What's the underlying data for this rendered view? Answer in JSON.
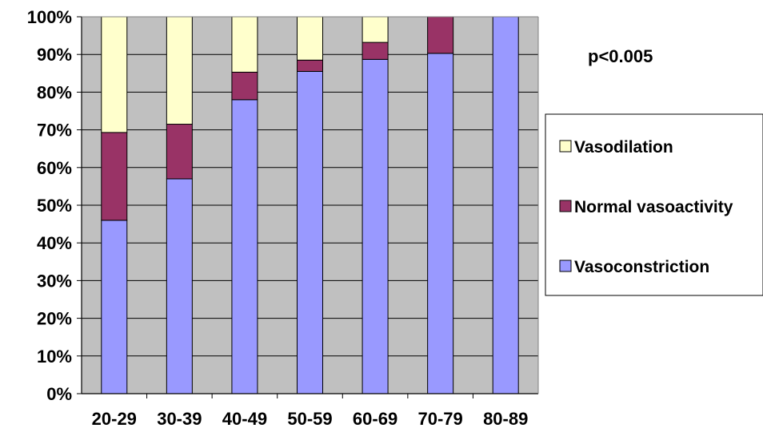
{
  "chart_data": {
    "type": "bar",
    "stacked": true,
    "normalized_percent": true,
    "categories": [
      "20-29",
      "30-39",
      "40-49",
      "50-59",
      "60-69",
      "70-79",
      "80-89"
    ],
    "series": [
      {
        "name": "Vasoconstriction",
        "values": [
          46,
          57,
          78,
          85.5,
          88.7,
          90.3,
          100
        ],
        "color": "#9999ff"
      },
      {
        "name": "Normal vasoactivity",
        "values": [
          23.3,
          14.5,
          7.3,
          3,
          4.5,
          9.7,
          0
        ],
        "color": "#993366"
      },
      {
        "name": "Vasodilation",
        "values": [
          30.7,
          28.5,
          14.7,
          11.5,
          6.8,
          0,
          0
        ],
        "color": "#ffffcc"
      }
    ],
    "ylim": [
      0,
      100
    ],
    "yticks": [
      "0%",
      "10%",
      "20%",
      "30%",
      "40%",
      "50%",
      "60%",
      "70%",
      "80%",
      "90%",
      "100%"
    ],
    "annotation": "p<0.005",
    "legend_placement": "right",
    "legend_order": [
      "Vasodilation",
      "Normal vasoactivity",
      "Vasoconstriction"
    ],
    "plot_background": "#c0c0c0",
    "grid": true
  }
}
